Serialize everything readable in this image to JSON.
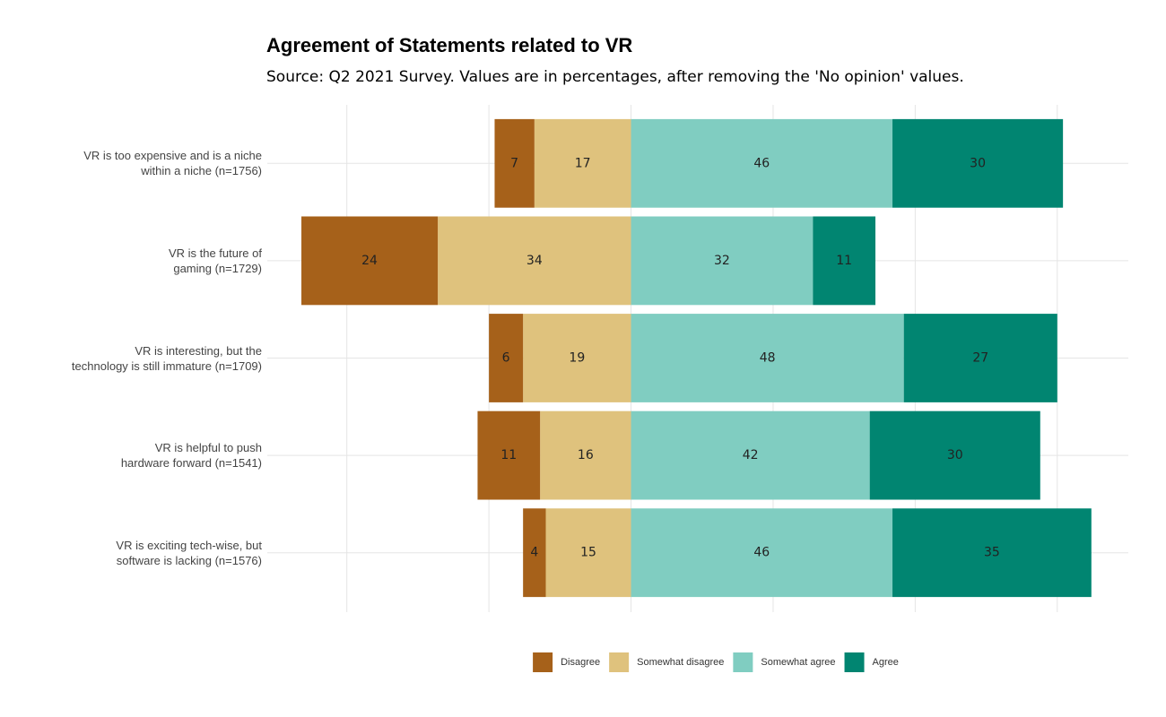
{
  "chart_data": {
    "type": "diverging_bar",
    "title": "Agreement of Statements related to VR",
    "subtitle": "Source: Q2 2021 Survey. Values are in percentages, after removing the 'No opinion' values.",
    "categories": [
      "VR is too expensive and is a niche\nwithin a niche (n=1756)",
      "VR is the future of\ngaming (n=1729)",
      "VR is interesting, but the\ntechnology is still immature (n=1709)",
      "VR is helpful to push\nhardware forward (n=1541)",
      "VR is exciting tech-wise, but\nsoftware is lacking (n=1576)"
    ],
    "series": [
      {
        "name": "Disagree",
        "color": "#a6611a",
        "values": [
          7,
          24,
          6,
          11,
          4
        ]
      },
      {
        "name": "Somewhat disagree",
        "color": "#dfc27d",
        "values": [
          17,
          34,
          19,
          16,
          15
        ]
      },
      {
        "name": "Somewhat agree",
        "color": "#80cdc1",
        "values": [
          46,
          32,
          48,
          42,
          46
        ]
      },
      {
        "name": "Agree",
        "color": "#018571",
        "values": [
          30,
          11,
          27,
          30,
          35
        ]
      }
    ],
    "xlim": [
      -64,
      87.5
    ],
    "xticks": [
      -50,
      -25,
      0,
      25,
      50,
      75
    ],
    "grid": true,
    "legend": "bottom"
  }
}
